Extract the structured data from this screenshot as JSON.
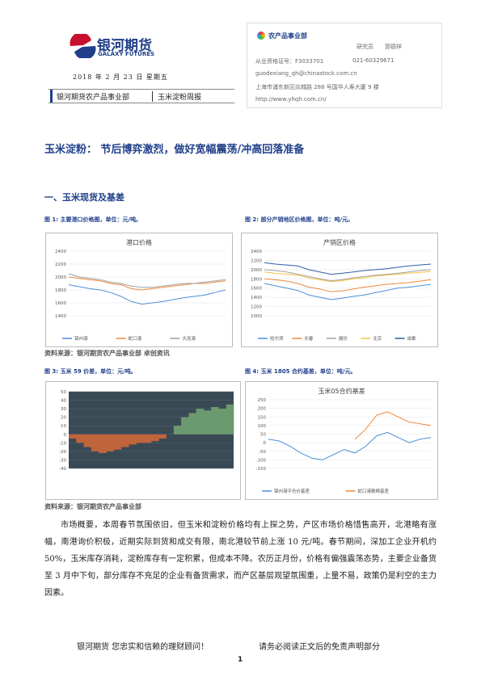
{
  "header": {
    "logo_cn": "银河期货",
    "logo_en": "GALAXY FUTURES",
    "date": "2018 年 2 月 23 日 星期五",
    "dept": "银河期货农产品事业部",
    "report": "玉米淀粉周报"
  },
  "contact": {
    "dept_name": "农产品事业部",
    "role": "研究员",
    "name": "郭德祥",
    "cert": "从业资格证号：F3033701",
    "phone": "021-60329671",
    "email": "guodexiang_qh@chinastock.com.cn",
    "address": "上海市浦东新区向城路 288 号国华人寿大厦 9 楼",
    "web": "http://www.yhqh.com.cn/"
  },
  "title": "玉米淀粉： 节后博弈激烈，做好宽幅震荡/冲高回落准备",
  "section": "一、玉米现货及基差",
  "figures": [
    {
      "caption": "图 1:  主要港口价格图，单位：元/吨。",
      "chart": {
        "type": "line",
        "title": "港口价格",
        "ylim": [
          1400,
          2400
        ],
        "yticks": [
          1400,
          1600,
          1800,
          2000,
          2200,
          2400
        ],
        "series": [
          {
            "name": "锦州港",
            "color": "#4a90d9",
            "values": [
              1880,
              1850,
              1820,
              1800,
              1760,
              1700,
              1620,
              1580,
              1600,
              1620,
              1650,
              1680,
              1700,
              1720,
              1760,
              1800
            ]
          },
          {
            "name": "蛇口港",
            "color": "#f0883a",
            "values": [
              2000,
              1980,
              1960,
              1940,
              1900,
              1880,
              1820,
              1800,
              1820,
              1840,
              1860,
              1880,
              1900,
              1900,
              1920,
              1940
            ]
          },
          {
            "name": "大连港",
            "color": "#a0a0a0",
            "values": [
              2050,
              2000,
              1980,
              1960,
              1920,
              1900,
              1860,
              1840,
              1840,
              1860,
              1880,
              1900,
              1900,
              1920,
              1940,
              1960
            ]
          }
        ]
      }
    },
    {
      "caption": "图 2:  部分产销地区价格图，单位：吨/元。",
      "chart": {
        "type": "line",
        "title": "产销区价格",
        "ylim": [
          1000,
          2400
        ],
        "yticks": [
          1000,
          1200,
          1400,
          1600,
          1800,
          2000,
          2200,
          2400
        ],
        "series": [
          {
            "name": "哈尔滨",
            "color": "#4a90d9",
            "values": [
              1700,
              1650,
              1600,
              1550,
              1450,
              1400,
              1350,
              1380,
              1420,
              1450,
              1500,
              1550,
              1600,
              1620,
              1650,
              1680
            ]
          },
          {
            "name": "长春",
            "color": "#f0883a",
            "values": [
              1800,
              1780,
              1750,
              1700,
              1620,
              1580,
              1520,
              1540,
              1580,
              1620,
              1650,
              1680,
              1700,
              1720,
              1750,
              1780
            ]
          },
          {
            "name": "潍坊",
            "color": "#a0a0a0",
            "values": [
              2000,
              1980,
              1950,
              1900,
              1850,
              1800,
              1760,
              1780,
              1820,
              1850,
              1880,
              1900,
              1920,
              1950,
              1980,
              2000
            ]
          },
          {
            "name": "北京",
            "color": "#f5c242",
            "values": [
              1950,
              1920,
              1900,
              1880,
              1820,
              1780,
              1740,
              1760,
              1800,
              1820,
              1860,
              1880,
              1900,
              1920,
              1940,
              1960
            ]
          },
          {
            "name": "成都",
            "color": "#2e5ca8",
            "values": [
              2150,
              2120,
              2100,
              2080,
              2000,
              1950,
              1900,
              1920,
              1950,
              1980,
              2000,
              2020,
              2050,
              2080,
              2100,
              2120
            ]
          }
        ]
      }
    },
    {
      "caption": "图 3:  玉米 59 价差，单位：元/吨。",
      "chart": {
        "type": "area",
        "ylim": [
          -40,
          50
        ],
        "yticks": [
          50,
          40,
          30,
          20,
          10,
          0,
          -10,
          -20,
          -30,
          -40
        ],
        "values": [
          -5,
          -10,
          -15,
          -20,
          -22,
          -20,
          -18,
          -15,
          -12,
          -10,
          -10,
          -8,
          -5,
          0,
          10,
          20,
          25,
          30,
          28,
          32,
          30,
          35
        ]
      }
    },
    {
      "caption": "图 4:  玉米 1805 合约基差，单位：吨/元。",
      "chart": {
        "type": "line",
        "title": "玉米05合约基差",
        "ylim": [
          -150,
          250
        ],
        "yticks": [
          -150,
          -100,
          -50,
          0,
          50,
          100,
          150,
          200,
          250
        ],
        "series": [
          {
            "name": "锦州港平仓价基差",
            "color": "#4a90d9",
            "values": [
              20,
              10,
              -20,
              -60,
              -90,
              -100,
              -70,
              -40,
              -60,
              -20,
              40,
              60,
              30,
              0,
              20,
              30
            ]
          },
          {
            "name": "蛇口港散粮基差",
            "color": "#f0883a",
            "values": [
              null,
              null,
              null,
              null,
              null,
              null,
              null,
              null,
              20,
              80,
              160,
              180,
              150,
              120,
              110,
              100
            ]
          }
        ]
      }
    }
  ],
  "sources": [
    "资料来源：银河期货农产品事业部 卓创资讯",
    "资料来源：银河期货农产品事业部"
  ],
  "body": "市场概要，本周春节氛围依旧，但玉米和淀粉价格均有上探之势，产区市场价格惜售高开，北港略有涨幅，南港询价积极，近期实际到货和成交有限，南北港较节前上涨 10 元/吨。春节期间，深加工企业开机约 50%，玉米库存消耗，淀粉库存有一定积累，但成本不降。农历正月份，价格有偏强震荡态势，主要企业备货至 3 月中下旬，部分库存不充足的企业有备货需求，而产区基层观望氛围重，上量不易，政策仍是利空的主力因素。",
  "footer": {
    "left": "银河期货  您忠实和信赖的理财顾问！",
    "right": "请务必阅读正文后的免责声明部分",
    "page": "1"
  }
}
